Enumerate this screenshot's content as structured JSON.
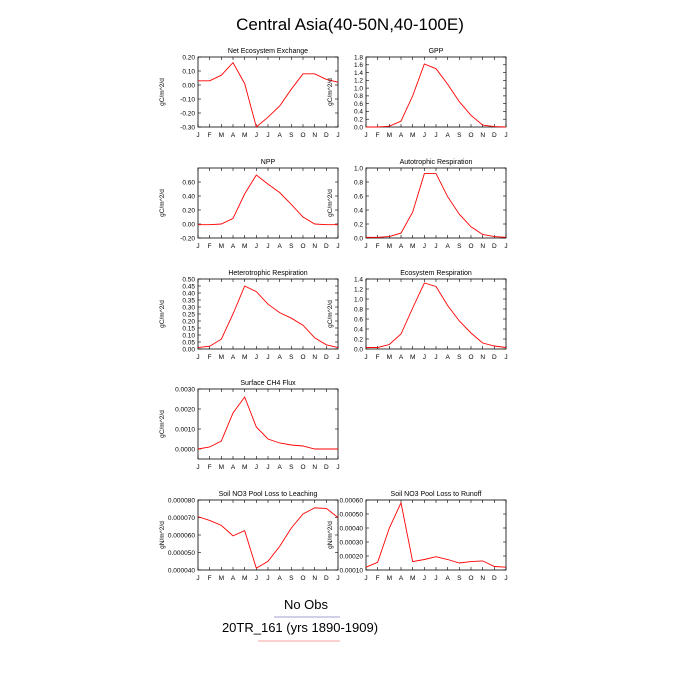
{
  "page": {
    "title": "Central Asia(40-50N,40-100E)",
    "legend": {
      "items": [
        {
          "label": "No Obs",
          "color": "#8080c0"
        },
        {
          "label": "20TR_161 (yrs 1890-1909)",
          "color": "#f08080"
        }
      ]
    }
  },
  "chart_data": [
    {
      "type": "line",
      "title": "Net Ecosystem Exchange",
      "ylabel": "gC/m^2/d",
      "x": [
        "J",
        "F",
        "M",
        "A",
        "M",
        "J",
        "J",
        "A",
        "S",
        "O",
        "N",
        "D",
        "J"
      ],
      "ylim": [
        -0.3,
        0.2
      ],
      "yticks": [
        -0.3,
        -0.2,
        -0.1,
        0.0,
        0.1,
        0.2
      ],
      "ytick_labels": [
        "-0.30",
        "-0.20",
        "-0.10",
        "0.00",
        "0.10",
        "0.20"
      ],
      "series": [
        {
          "values": [
            0.03,
            0.03,
            0.07,
            0.16,
            0.01,
            -0.3,
            -0.23,
            -0.15,
            -0.03,
            0.08,
            0.08,
            0.04,
            0.02
          ],
          "color": "#ff0000"
        }
      ]
    },
    {
      "type": "line",
      "title": "GPP",
      "ylabel": "gC/m^2/d",
      "x": [
        "J",
        "F",
        "M",
        "A",
        "M",
        "J",
        "J",
        "A",
        "S",
        "O",
        "N",
        "D",
        "J"
      ],
      "ylim": [
        0.0,
        1.8
      ],
      "yticks": [
        0.0,
        0.2,
        0.4,
        0.6,
        0.8,
        1.0,
        1.2,
        1.4,
        1.6,
        1.8
      ],
      "ytick_labels": [
        "0.0",
        "0.2",
        "0.4",
        "0.6",
        "0.8",
        "1.0",
        "1.2",
        "1.4",
        "1.6",
        "1.8"
      ],
      "series": [
        {
          "values": [
            0.0,
            0.0,
            0.02,
            0.15,
            0.8,
            1.62,
            1.5,
            1.1,
            0.65,
            0.3,
            0.05,
            0.01,
            0.0
          ],
          "color": "#ff0000"
        }
      ]
    },
    {
      "type": "line",
      "title": "NPP",
      "ylabel": "gC/m^2/d",
      "x": [
        "J",
        "F",
        "M",
        "A",
        "M",
        "J",
        "J",
        "A",
        "S",
        "O",
        "N",
        "D",
        "J"
      ],
      "ylim": [
        -0.2,
        0.8
      ],
      "yticks": [
        -0.2,
        0.0,
        0.2,
        0.4,
        0.6
      ],
      "ytick_labels": [
        "-0.20",
        "0.00",
        "0.20",
        "0.40",
        "0.60"
      ],
      "series": [
        {
          "values": [
            -0.01,
            -0.01,
            0.0,
            0.08,
            0.43,
            0.7,
            0.57,
            0.45,
            0.28,
            0.1,
            0.0,
            -0.01,
            -0.01
          ],
          "color": "#ff0000"
        }
      ]
    },
    {
      "type": "line",
      "title": "Autotrophic Respiration",
      "ylabel": "gC/m^2/d",
      "x": [
        "J",
        "F",
        "M",
        "A",
        "M",
        "J",
        "J",
        "A",
        "S",
        "O",
        "N",
        "D",
        "J"
      ],
      "ylim": [
        0.0,
        1.0
      ],
      "yticks": [
        0.0,
        0.2,
        0.4,
        0.6,
        0.8,
        1.0
      ],
      "ytick_labels": [
        "0.0",
        "0.2",
        "0.4",
        "0.6",
        "0.8",
        "1.0"
      ],
      "series": [
        {
          "values": [
            0.01,
            0.01,
            0.02,
            0.07,
            0.37,
            0.92,
            0.92,
            0.59,
            0.34,
            0.16,
            0.05,
            0.02,
            0.01
          ],
          "color": "#ff0000"
        }
      ]
    },
    {
      "type": "line",
      "title": "Heterotrophic Respiration",
      "ylabel": "gC/m^2/d",
      "x": [
        "J",
        "F",
        "M",
        "A",
        "M",
        "J",
        "J",
        "A",
        "S",
        "O",
        "N",
        "D",
        "J"
      ],
      "ylim": [
        0.0,
        0.5
      ],
      "yticks": [
        0.0,
        0.05,
        0.1,
        0.15,
        0.2,
        0.25,
        0.3,
        0.35,
        0.4,
        0.45,
        0.5
      ],
      "ytick_labels": [
        "0.00",
        "0.05",
        "0.10",
        "0.15",
        "0.20",
        "0.25",
        "0.30",
        "0.35",
        "0.40",
        "0.45",
        "0.50"
      ],
      "series": [
        {
          "values": [
            0.01,
            0.02,
            0.07,
            0.25,
            0.45,
            0.41,
            0.32,
            0.26,
            0.22,
            0.17,
            0.08,
            0.03,
            0.01
          ],
          "color": "#ff0000"
        }
      ]
    },
    {
      "type": "line",
      "title": "Ecosystem Respiration",
      "ylabel": "gC/m^2/d",
      "x": [
        "J",
        "F",
        "M",
        "A",
        "M",
        "J",
        "J",
        "A",
        "S",
        "O",
        "N",
        "D",
        "J"
      ],
      "ylim": [
        0.0,
        1.4
      ],
      "yticks": [
        0.0,
        0.2,
        0.4,
        0.6,
        0.8,
        1.0,
        1.2,
        1.4
      ],
      "ytick_labels": [
        "0.0",
        "0.2",
        "0.4",
        "0.6",
        "0.8",
        "1.0",
        "1.2",
        "1.4"
      ],
      "series": [
        {
          "values": [
            0.03,
            0.03,
            0.09,
            0.3,
            0.82,
            1.32,
            1.25,
            0.87,
            0.56,
            0.32,
            0.12,
            0.06,
            0.03
          ],
          "color": "#ff0000"
        }
      ]
    },
    {
      "type": "line",
      "title": "Surface CH4 Flux",
      "ylabel": "gC/m^2/d",
      "x": [
        "J",
        "F",
        "M",
        "A",
        "M",
        "J",
        "J",
        "A",
        "S",
        "O",
        "N",
        "D",
        "J"
      ],
      "ylim": [
        -0.0005,
        0.003
      ],
      "yticks": [
        0.0,
        0.001,
        0.002,
        0.003
      ],
      "ytick_labels": [
        "0.0000",
        "0.0010",
        "0.0020",
        "0.0030"
      ],
      "series": [
        {
          "values": [
            0.0,
            0.0001,
            0.0004,
            0.0018,
            0.0026,
            0.0011,
            0.0005,
            0.0003,
            0.0002,
            0.00015,
            0.0,
            0.0,
            0.0
          ],
          "color": "#ff0000"
        }
      ]
    },
    {
      "type": "line",
      "title": "Soil NO3 Pool Loss to Leaching",
      "ylabel": "gN/m^2/d",
      "x": [
        "J",
        "F",
        "M",
        "A",
        "M",
        "J",
        "J",
        "A",
        "S",
        "O",
        "N",
        "D",
        "J"
      ],
      "ylim": [
        4e-05,
        8e-05
      ],
      "yticks": [
        4e-05,
        5e-05,
        6e-05,
        7e-05,
        8e-05
      ],
      "ytick_labels": [
        "0.000040",
        "0.000050",
        "0.000060",
        "0.000070",
        "0.000080"
      ],
      "series": [
        {
          "values": [
            7.05e-05,
            6.83e-05,
            6.55e-05,
            5.95e-05,
            6.25e-05,
            4.1e-05,
            4.5e-05,
            5.35e-05,
            6.4e-05,
            7.2e-05,
            7.55e-05,
            7.52e-05,
            7e-05
          ],
          "color": "#ff0000"
        }
      ]
    },
    {
      "type": "line",
      "title": "Soil NO3 Pool Loss to Runoff",
      "ylabel": "gN/m^2/d",
      "x": [
        "J",
        "F",
        "M",
        "A",
        "M",
        "J",
        "J",
        "A",
        "S",
        "O",
        "N",
        "D",
        "J"
      ],
      "ylim": [
        0.0001,
        0.0006
      ],
      "yticks": [
        0.0001,
        0.0002,
        0.0003,
        0.0004,
        0.0005,
        0.0006
      ],
      "ytick_labels": [
        "0.00010",
        "0.00020",
        "0.00030",
        "0.00040",
        "0.00050",
        "0.00060"
      ],
      "series": [
        {
          "values": [
            0.00012,
            0.000155,
            0.0004,
            0.00058,
            0.00016,
            0.000175,
            0.000195,
            0.000175,
            0.00015,
            0.00016,
            0.000165,
            0.000125,
            0.00012
          ],
          "color": "#ff0000"
        }
      ]
    }
  ]
}
